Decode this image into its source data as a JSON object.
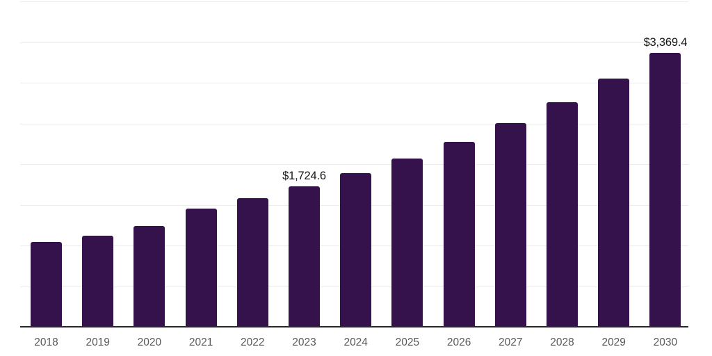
{
  "chart_data": {
    "type": "bar",
    "categories": [
      "2018",
      "2019",
      "2020",
      "2021",
      "2022",
      "2023",
      "2024",
      "2025",
      "2026",
      "2027",
      "2028",
      "2029",
      "2030"
    ],
    "values": [
      1040,
      1120,
      1240,
      1450,
      1580,
      1724.6,
      1885,
      2065,
      2270,
      2505,
      2760,
      3055,
      3369.4
    ],
    "data_labels": {
      "2023": "$1,724.6",
      "2030": "$3,369.4"
    },
    "title": "",
    "xlabel": "",
    "ylabel": "",
    "ylim": [
      0,
      4000
    ],
    "gridline_step": 500,
    "grid": true,
    "legend": false,
    "y_axis_tick_labels_visible": false,
    "bar_color": "#36124C",
    "gridline_color": "#ededed",
    "axis_color": "#28282c",
    "tick_label_color": "#58595b",
    "data_label_color": "#161616"
  }
}
